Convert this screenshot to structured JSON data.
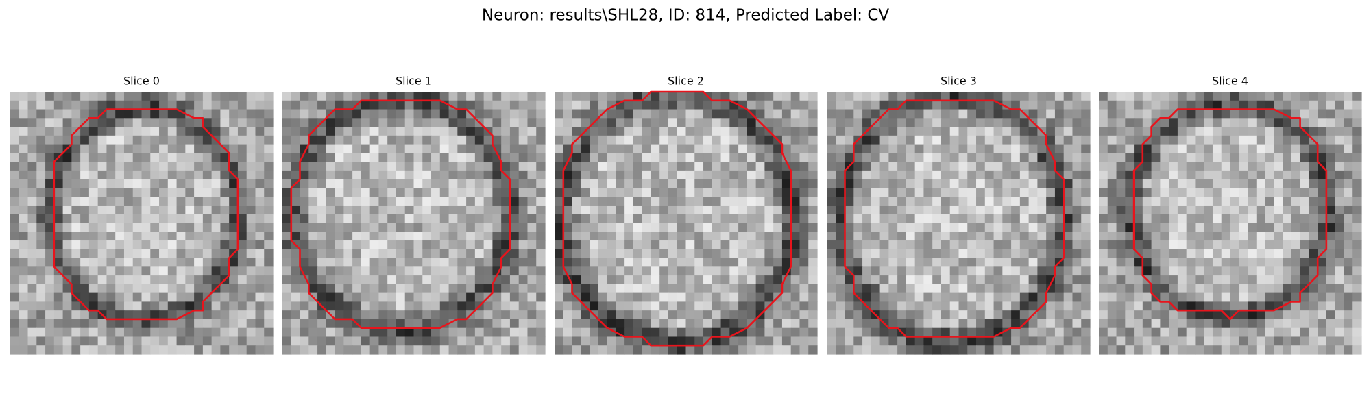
{
  "title": "Neuron: results\\SHL28, ID: 814, Predicted Label: CV",
  "panels": [
    {
      "title": "Slice 0"
    },
    {
      "title": "Slice 1"
    },
    {
      "title": "Slice 2"
    },
    {
      "title": "Slice 3"
    },
    {
      "title": "Slice 4"
    }
  ]
}
